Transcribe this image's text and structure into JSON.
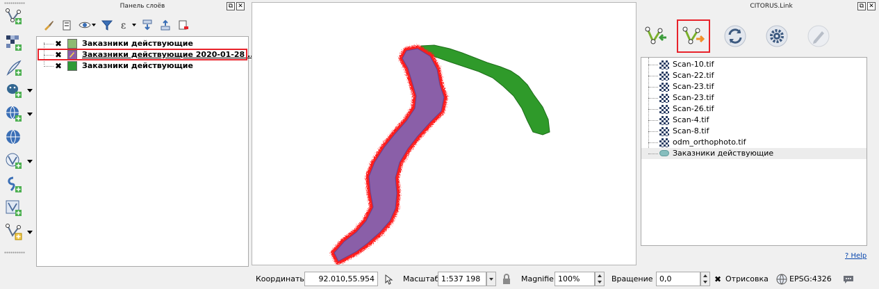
{
  "layers_panel": {
    "title": "Панель слоёв",
    "float_glyph": "⧉",
    "close_glyph": "✕",
    "toolbar_icons": [
      "paint-brush-icon",
      "add-group-icon",
      "eye-icon",
      "filter-icon",
      "expression-filter-icon",
      "expand-all-icon",
      "collapse-all-icon",
      "remove-layer-icon"
    ],
    "check_glyph": "✖",
    "layers": [
      {
        "label": "Заказники действующие",
        "checked": true,
        "color": "#8dba72"
      },
      {
        "label": "Заказники действующие 2020-01-28 ...",
        "checked": true,
        "color": "#8a5fa8",
        "selected": true
      },
      {
        "label": "Заказники действующие",
        "checked": true,
        "color": "#2f9a35"
      }
    ]
  },
  "left_toolbar": {
    "icons": [
      "add-vector-layer-icon",
      "add-raster-layer-icon",
      "add-delimited-text-icon",
      "add-postgis-icon",
      "add-wms-icon",
      "add-wcs-icon",
      "add-wfs-icon",
      "add-spatialite-icon",
      "add-virtual-layer-icon",
      "new-shapefile-icon"
    ]
  },
  "map": {
    "purple_fill": "#8a5fa8",
    "red_edge": "#ff1a1a",
    "green_fill": "#2f9a2a"
  },
  "citorus_panel": {
    "title": "CITORUS.Link",
    "float_glyph": "⧉",
    "close_glyph": "✕",
    "buttons": [
      "import-layer-icon",
      "export-layer-icon",
      "refresh-icon",
      "settings-icon",
      "edit-icon"
    ],
    "files": [
      {
        "label": "Scan-10.tif",
        "kind": "raster"
      },
      {
        "label": "Scan-22.tif",
        "kind": "raster"
      },
      {
        "label": "Scan-23.tif",
        "kind": "raster"
      },
      {
        "label": "Scan-23.tif",
        "kind": "raster"
      },
      {
        "label": "Scan-26.tif",
        "kind": "raster"
      },
      {
        "label": "Scan-4.tif",
        "kind": "raster"
      },
      {
        "label": "Scan-8.tif",
        "kind": "raster"
      },
      {
        "label": "odm_orthophoto.tif",
        "kind": "raster"
      },
      {
        "label": "Заказники действующие",
        "kind": "vector",
        "selected": true
      }
    ],
    "help_label": "? Help"
  },
  "status_bar": {
    "coordinates_label": "Координаты",
    "coordinates_value": "92.010,55.954",
    "scale_label": "Масштаб",
    "scale_value": "1:537 198",
    "magnifier_label": "Magnifier",
    "magnifier_value": "100%",
    "rotation_label": "Вращение",
    "rotation_value": "0,0",
    "render_label": "Отрисовка",
    "render_checked": true,
    "crs_label": "EPSG:4326"
  }
}
